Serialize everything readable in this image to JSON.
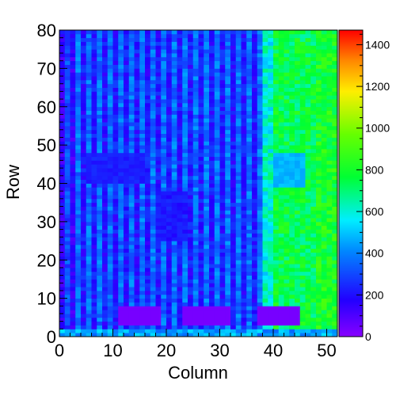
{
  "chart_data": {
    "type": "heatmap",
    "title": "",
    "xlabel": "Column",
    "ylabel": "Row",
    "xlim": [
      0,
      52
    ],
    "ylim": [
      0,
      80
    ],
    "zlim": [
      0,
      1470
    ],
    "x_ticks": [
      "0",
      "10",
      "20",
      "30",
      "40",
      "50"
    ],
    "y_ticks": [
      "0",
      "10",
      "20",
      "30",
      "40",
      "50",
      "60",
      "70",
      "80"
    ],
    "z_ticks": [
      "0",
      "200",
      "400",
      "600",
      "800",
      "1000",
      "1200",
      "1400"
    ],
    "colormap": "rainbow (violet → blue → cyan → green → yellow → red)",
    "grid": false,
    "n_columns": 52,
    "n_rows": 80,
    "regions": [
      {
        "name": "background_left",
        "x_range": [
          0,
          38
        ],
        "y_range": [
          0,
          80
        ],
        "approx_value": 300
      },
      {
        "name": "background_right",
        "x_range": [
          38,
          52
        ],
        "y_range": [
          0,
          80
        ],
        "approx_value": 750
      },
      {
        "name": "dense_block_left",
        "x_range": [
          5,
          16
        ],
        "y_range": [
          40,
          48
        ],
        "approx_value": 230
      },
      {
        "name": "dense_block_center",
        "x_range": [
          18,
          24
        ],
        "y_range": [
          25,
          38
        ],
        "approx_value": 220
      },
      {
        "name": "light_block_right",
        "x_range": [
          40,
          46
        ],
        "y_range": [
          39,
          48
        ],
        "approx_value": 480
      },
      {
        "name": "empty_pad_1",
        "x_range": [
          11,
          19
        ],
        "y_range": [
          3,
          8
        ],
        "approx_value": 30
      },
      {
        "name": "empty_pad_2",
        "x_range": [
          23,
          32
        ],
        "y_range": [
          3,
          8
        ],
        "approx_value": 30
      },
      {
        "name": "empty_pad_3",
        "x_range": [
          37,
          45
        ],
        "y_range": [
          3,
          8
        ],
        "approx_value": 30
      }
    ]
  }
}
